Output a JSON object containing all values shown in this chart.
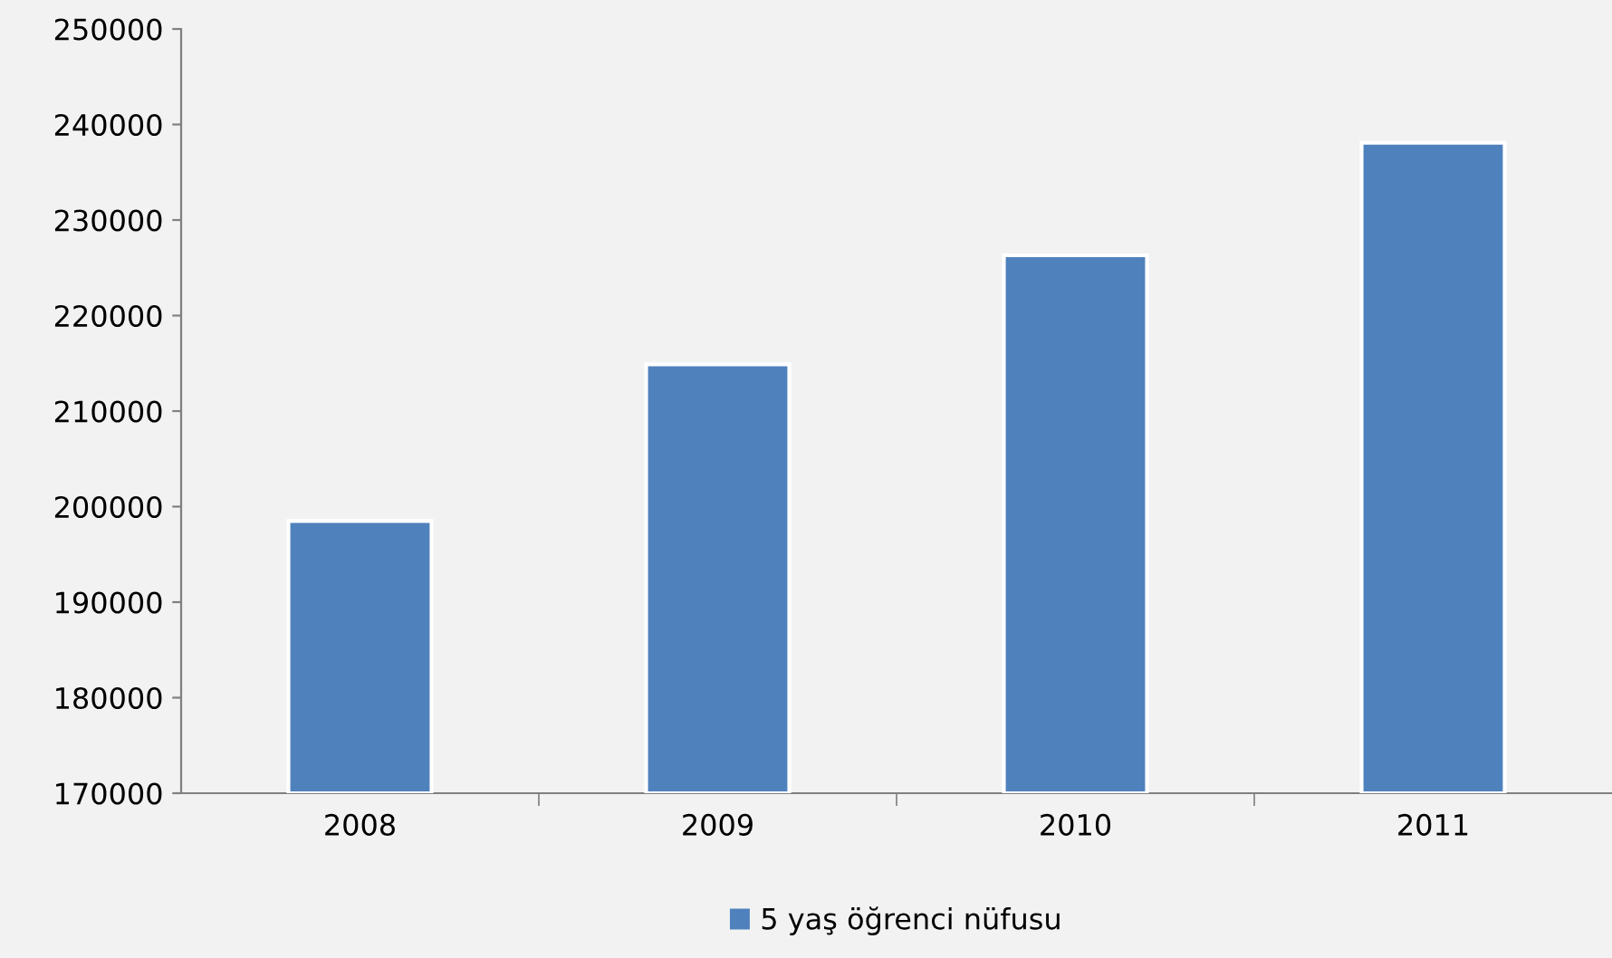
{
  "chart_data": {
    "type": "bar",
    "categories": [
      "2008",
      "2009",
      "2010",
      "2011"
    ],
    "series": [
      {
        "name": "5 yaş öğrenci nüfusu",
        "color": "#4f81bd",
        "values": [
          198500,
          214900,
          226300,
          238100
        ]
      }
    ],
    "ylim": [
      170000,
      250000
    ],
    "yticks": [
      170000,
      180000,
      190000,
      200000,
      210000,
      220000,
      230000,
      240000,
      250000
    ],
    "grid": false,
    "legend": "bottom"
  }
}
